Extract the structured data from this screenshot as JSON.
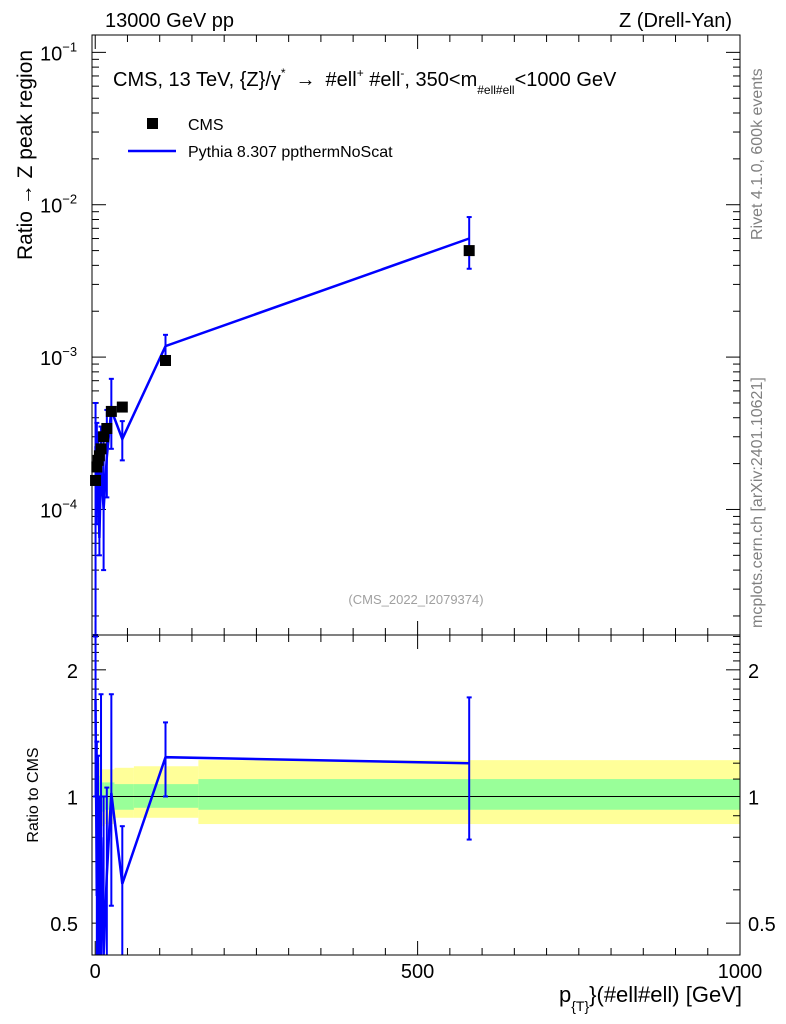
{
  "header": {
    "left": "13000 GeV pp",
    "right": "Z (Drell-Yan)"
  },
  "side_labels": {
    "rivet": "Rivet 4.1.0,  600k events",
    "mcplots": "mcplots.cern.ch [arXiv:2401.10621]"
  },
  "colors": {
    "mc_line": "#0000ff",
    "data_marker": "#000000",
    "band_inner": "#99ff99",
    "band_outer": "#ffff99",
    "axis": "#000000",
    "watermark": "#a0a0a0",
    "side_text": "#808080"
  },
  "chart_data": [
    {
      "id": "main",
      "type": "scatter",
      "title": "CMS, 13 TeV, {Z}/γ* → #ell⁺ #ell⁻, 350<m#ell#ell<1000 GeV",
      "title_parts": {
        "a": "CMS, 13 TeV, {Z}/",
        "gamma": "γ",
        "star": "*",
        "arrow": "→",
        "b": "#ell",
        "plus": "+",
        "c": " #ell",
        "minus": "-",
        "d": ", 350<m",
        "sub": "#ell#ell",
        "e": "<1000 GeV"
      },
      "ylabel": "Ratio → Z peak region",
      "yscale": "log",
      "ylim": [
        1.5e-05,
        0.13
      ],
      "xlim": [
        -5,
        1000
      ],
      "ytick_labels": [
        {
          "base": "10",
          "exp": "−1",
          "value": 0.1
        },
        {
          "base": "10",
          "exp": "−2",
          "value": 0.01
        },
        {
          "base": "10",
          "exp": "−3",
          "value": 0.001
        },
        {
          "base": "10",
          "exp": "−4",
          "value": 0.0001
        }
      ],
      "watermark": "(CMS_2022_I2079374)",
      "legend": {
        "position": "top-left",
        "entries": [
          {
            "label": "CMS",
            "kind": "marker"
          },
          {
            "label": "Pythia 8.307 ppthermNoScat",
            "kind": "line"
          }
        ]
      },
      "series": [
        {
          "name": "CMS",
          "kind": "points",
          "x": [
            0.5,
            2.5,
            4.5,
            6.5,
            9.0,
            13.0,
            18.0,
            25.0,
            42.0,
            109.0,
            580.0
          ],
          "y": [
            0.000155,
            0.00019,
            0.00021,
            0.000225,
            0.00025,
            0.0003,
            0.00034,
            0.00044,
            0.00047,
            0.00095,
            0.005
          ]
        },
        {
          "name": "Pythia 8.307 ppthermNoScat",
          "kind": "line",
          "x": [
            0.5,
            2.5,
            4.5,
            6.5,
            9.0,
            13.0,
            18.0,
            25.0,
            42.0,
            109.0,
            580.0
          ],
          "y": [
            0.00026,
            0.00011,
            0.00015,
            6.5e-05,
            0.0002,
            0.0001,
            0.00022,
            0.00045,
            0.00029,
            0.00118,
            0.006
          ],
          "err_lo": [
            1e-05,
            8e-05,
            0.00012,
            5e-05,
            0.00015,
            4e-05,
            0.00012,
            0.00025,
            0.00021,
            0.00095,
            0.0038
          ],
          "err_hi": [
            0.0005,
            0.00037,
            0.00032,
            0.00026,
            0.00035,
            0.00033,
            0.00045,
            0.00072,
            0.00038,
            0.0014,
            0.0083
          ]
        }
      ]
    },
    {
      "id": "ratio",
      "type": "line",
      "ylabel": "Ratio to CMS",
      "xlabel": "p_{T}(#ell#ell) [GeV]",
      "xlabel_parts": {
        "p": "p",
        "sub": "{T}",
        "rest": "}(#ell#ell) [GeV]"
      },
      "yscale": "log",
      "ylim": [
        0.42,
        2.42
      ],
      "xlim": [
        -5,
        1000
      ],
      "ytick_labels": [
        {
          "label": "2",
          "value": 2
        },
        {
          "label": "1",
          "value": 1
        },
        {
          "label": "0.5",
          "value": 0.5
        }
      ],
      "xtick_labels": [
        {
          "label": "0",
          "value": 0
        },
        {
          "label": "500",
          "value": 500
        },
        {
          "label": "1000",
          "value": 1000
        }
      ],
      "reference_line": 1,
      "bands": [
        {
          "x0": 0,
          "x1": 7,
          "inner": [
            0.88,
            1.12
          ],
          "outer": [
            0.8,
            1.2
          ]
        },
        {
          "x0": 7,
          "x1": 15,
          "inner": [
            0.92,
            1.08
          ],
          "outer": [
            0.85,
            1.16
          ]
        },
        {
          "x0": 15,
          "x1": 30,
          "inner": [
            0.93,
            1.08
          ],
          "outer": [
            0.86,
            1.16
          ]
        },
        {
          "x0": 30,
          "x1": 60,
          "inner": [
            0.93,
            1.07
          ],
          "outer": [
            0.89,
            1.17
          ]
        },
        {
          "x0": 60,
          "x1": 160,
          "inner": [
            0.94,
            1.07
          ],
          "outer": [
            0.89,
            1.18
          ]
        },
        {
          "x0": 160,
          "x1": 1000,
          "inner": [
            0.93,
            1.1
          ],
          "outer": [
            0.86,
            1.22
          ]
        }
      ],
      "series": [
        {
          "name": "Pythia 8.307 ppthermNoScat / CMS",
          "x": [
            0.5,
            2.5,
            4.5,
            6.5,
            9.0,
            13.0,
            18.0,
            25.0,
            42.0,
            109.0,
            580.0
          ],
          "y": [
            1.7,
            0.58,
            0.71,
            0.29,
            0.8,
            0.33,
            0.65,
            1.02,
            0.62,
            1.24,
            1.2
          ],
          "err_lo": [
            1.0,
            0.2,
            0.3,
            0.05,
            0.3,
            0.05,
            0.2,
            0.55,
            0.37,
            1.0,
            0.79
          ],
          "err_hi": [
            2.4,
            1.35,
            1.25,
            1.0,
            1.75,
            1.0,
            1.05,
            1.75,
            0.85,
            1.5,
            1.72
          ]
        }
      ]
    }
  ]
}
